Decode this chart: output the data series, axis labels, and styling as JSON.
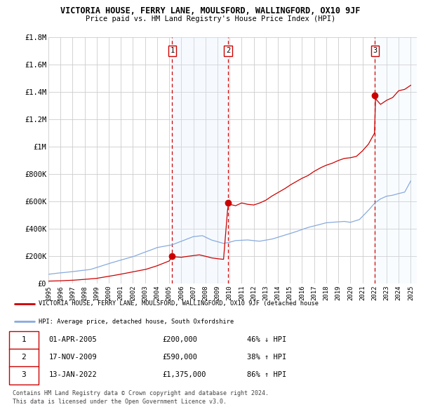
{
  "title": "VICTORIA HOUSE, FERRY LANE, MOULSFORD, WALLINGFORD, OX10 9JF",
  "subtitle": "Price paid vs. HM Land Registry's House Price Index (HPI)",
  "ylim": [
    0,
    1800000
  ],
  "xlim_start": 1995.0,
  "xlim_end": 2025.5,
  "yticks": [
    0,
    200000,
    400000,
    600000,
    800000,
    1000000,
    1200000,
    1400000,
    1600000,
    1800000
  ],
  "ytick_labels": [
    "£0",
    "£200K",
    "£400K",
    "£600K",
    "£800K",
    "£1M",
    "£1.2M",
    "£1.4M",
    "£1.6M",
    "£1.8M"
  ],
  "xtick_years": [
    1995,
    1996,
    1997,
    1998,
    1999,
    2000,
    2001,
    2002,
    2003,
    2004,
    2005,
    2006,
    2007,
    2008,
    2009,
    2010,
    2011,
    2012,
    2013,
    2014,
    2015,
    2016,
    2017,
    2018,
    2019,
    2020,
    2021,
    2022,
    2023,
    2024,
    2025
  ],
  "sale_dates": [
    2005.25,
    2009.88,
    2022.04
  ],
  "sale_prices": [
    200000,
    590000,
    1375000
  ],
  "sale_labels": [
    "1",
    "2",
    "3"
  ],
  "sale_label_text": [
    "01-APR-2005",
    "17-NOV-2009",
    "13-JAN-2022"
  ],
  "sale_price_text": [
    "£200,000",
    "£590,000",
    "£1,375,000"
  ],
  "sale_hpi_text": [
    "46% ↓ HPI",
    "38% ↑ HPI",
    "86% ↑ HPI"
  ],
  "line_color_red": "#cc0000",
  "line_color_blue": "#88aadd",
  "vline_color": "#cc0000",
  "marker_color": "#cc0000",
  "shade_between_color": "#ddeeff",
  "legend_label_red": "VICTORIA HOUSE, FERRY LANE, MOULSFORD, WALLINGFORD, OX10 9JF (detached house",
  "legend_label_blue": "HPI: Average price, detached house, South Oxfordshire",
  "footer1": "Contains HM Land Registry data © Crown copyright and database right 2024.",
  "footer2": "This data is licensed under the Open Government Licence v3.0.",
  "background_color": "#ffffff",
  "grid_color": "#cccccc"
}
